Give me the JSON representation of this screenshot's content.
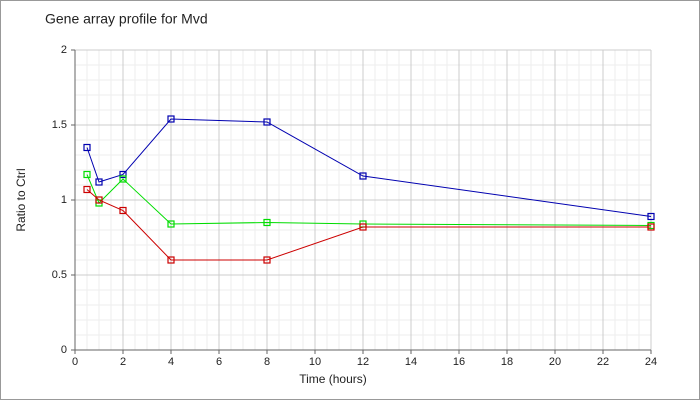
{
  "chart_data": {
    "type": "line",
    "title": "Gene array profile for Mvd",
    "x_label": "Time (hours)",
    "y_label": "Ratio to Ctrl",
    "x": [
      0.5,
      1,
      2,
      4,
      8,
      12,
      24
    ],
    "series": [
      {
        "color": "#0000b0",
        "values": [
          1.35,
          1.12,
          1.17,
          1.54,
          1.52,
          1.16,
          0.89
        ]
      },
      {
        "color": "#00dd00",
        "values": [
          1.17,
          0.98,
          1.14,
          0.84,
          0.85,
          0.84,
          0.83
        ]
      },
      {
        "color": "#cc0000",
        "values": [
          1.07,
          1.0,
          0.93,
          0.6,
          0.6,
          0.82,
          0.82
        ]
      }
    ],
    "xlim": [
      0,
      24
    ],
    "xticks": [
      0,
      2,
      4,
      6,
      8,
      10,
      12,
      14,
      16,
      18,
      20,
      22,
      24
    ],
    "ylim": [
      0,
      2
    ],
    "yticks": [
      0,
      0.5,
      1,
      1.5,
      2
    ],
    "grid": true
  }
}
